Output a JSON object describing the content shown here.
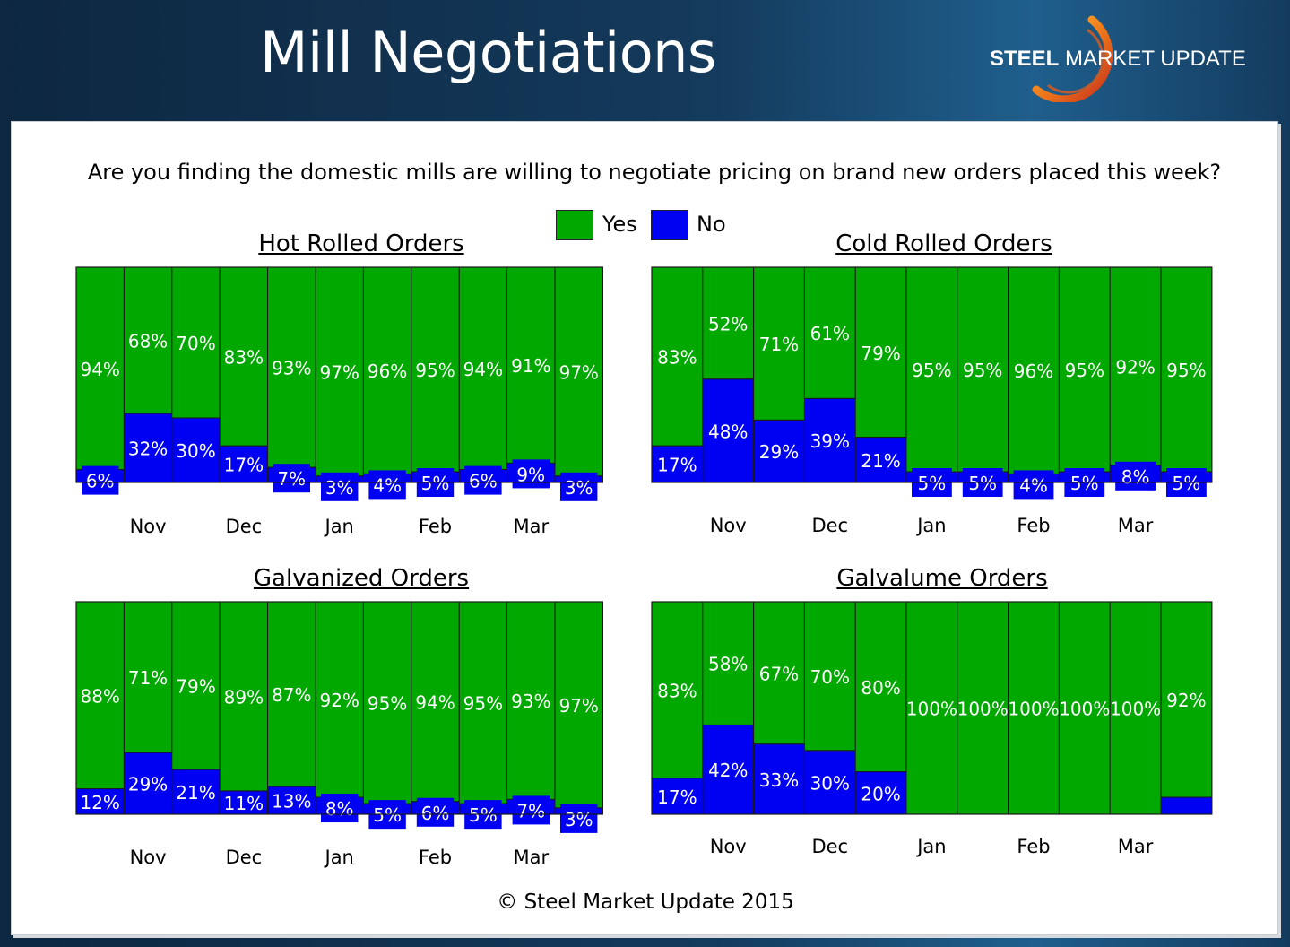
{
  "header": {
    "title": "Mill Negotiations",
    "logo_bold": "STEEL",
    "logo_light": "MARKET UPDATE"
  },
  "question": "Are you finding the domestic mills are willing to negotiate pricing on brand new orders placed this week?",
  "legend": [
    {
      "label": "Yes",
      "color": "#00a800"
    },
    {
      "label": "No",
      "color": "#0000f2"
    }
  ],
  "footer": {
    "copyright": "© Steel Market Update 2015"
  },
  "chart_data": [
    {
      "type": "bar",
      "stacked": true,
      "percent_stacked": true,
      "title": "Hot Rolled Orders",
      "month_labels": [
        {
          "label": "Nov",
          "bar": 1.5
        },
        {
          "label": "Dec",
          "bar": 3.5
        },
        {
          "label": "Jan",
          "bar": 5.5
        },
        {
          "label": "Feb",
          "bar": 7.5
        },
        {
          "label": "Mar",
          "bar": 9.5
        }
      ],
      "series": [
        {
          "name": "Yes",
          "values": [
            94,
            68,
            70,
            83,
            93,
            97,
            96,
            95,
            94,
            91,
            97
          ],
          "labels": [
            "94%",
            "68%",
            "70%",
            "83%",
            "93%",
            "97%",
            "96%",
            "95%",
            "94%",
            "91%",
            "97%"
          ]
        },
        {
          "name": "No",
          "values": [
            6,
            32,
            30,
            17,
            7,
            3,
            4,
            5,
            6,
            9,
            3
          ],
          "labels": [
            "6%",
            "32%",
            "30%",
            "17%",
            "7%",
            "3%",
            "4%",
            "5%",
            "6%",
            "9%",
            "3%"
          ]
        }
      ]
    },
    {
      "type": "bar",
      "stacked": true,
      "percent_stacked": true,
      "title": "Cold Rolled Orders",
      "month_labels": [
        {
          "label": "Nov",
          "bar": 1.5
        },
        {
          "label": "Dec",
          "bar": 3.5
        },
        {
          "label": "Jan",
          "bar": 5.5
        },
        {
          "label": "Feb",
          "bar": 7.5
        },
        {
          "label": "Mar",
          "bar": 9.5
        }
      ],
      "series": [
        {
          "name": "Yes",
          "values": [
            83,
            52,
            71,
            61,
            79,
            95,
            95,
            96,
            95,
            92,
            95
          ],
          "labels": [
            "83%",
            "52%",
            "71%",
            "61%",
            "79%",
            "95%",
            "95%",
            "96%",
            "95%",
            "92%",
            "95%"
          ]
        },
        {
          "name": "No",
          "values": [
            17,
            48,
            29,
            39,
            21,
            5,
            5,
            4,
            5,
            8,
            5
          ],
          "labels": [
            "17%",
            "48%",
            "29%",
            "39%",
            "21%",
            "5%",
            "5%",
            "4%",
            "5%",
            "8%",
            "5%"
          ]
        }
      ]
    },
    {
      "type": "bar",
      "stacked": true,
      "percent_stacked": true,
      "title": "Galvanized Orders",
      "month_labels": [
        {
          "label": "Nov",
          "bar": 1.5
        },
        {
          "label": "Dec",
          "bar": 3.5
        },
        {
          "label": "Jan",
          "bar": 5.5
        },
        {
          "label": "Feb",
          "bar": 7.5
        },
        {
          "label": "Mar",
          "bar": 9.5
        }
      ],
      "series": [
        {
          "name": "Yes",
          "values": [
            88,
            71,
            79,
            89,
            87,
            92,
            95,
            94,
            95,
            93,
            97
          ],
          "labels": [
            "88%",
            "71%",
            "79%",
            "89%",
            "87%",
            "92%",
            "95%",
            "94%",
            "95%",
            "93%",
            "97%"
          ]
        },
        {
          "name": "No",
          "values": [
            12,
            29,
            21,
            11,
            13,
            8,
            5,
            6,
            5,
            7,
            3
          ],
          "labels": [
            "12%",
            "29%",
            "21%",
            "11%",
            "13%",
            "8%",
            "5%",
            "6%",
            "5%",
            "7%",
            "3%"
          ]
        }
      ]
    },
    {
      "type": "bar",
      "stacked": true,
      "percent_stacked": true,
      "title": "Galvalume Orders",
      "month_labels": [
        {
          "label": "Nov",
          "bar": 1.5
        },
        {
          "label": "Dec",
          "bar": 3.5
        },
        {
          "label": "Jan",
          "bar": 5.5
        },
        {
          "label": "Feb",
          "bar": 7.5
        },
        {
          "label": "Mar",
          "bar": 9.5
        }
      ],
      "series": [
        {
          "name": "Yes",
          "values": [
            83,
            58,
            67,
            70,
            80,
            100,
            100,
            100,
            100,
            100,
            92
          ],
          "labels": [
            "83%",
            "58%",
            "67%",
            "70%",
            "80%",
            "100%",
            "100%",
            "100%",
            "100%",
            "100%",
            "92%"
          ]
        },
        {
          "name": "No",
          "values": [
            17,
            42,
            33,
            30,
            20,
            0,
            0,
            0,
            0,
            0,
            8
          ],
          "labels": [
            "17%",
            "42%",
            "33%",
            "30%",
            "20%",
            "",
            "",
            "",
            "",
            "",
            ""
          ]
        }
      ]
    }
  ]
}
